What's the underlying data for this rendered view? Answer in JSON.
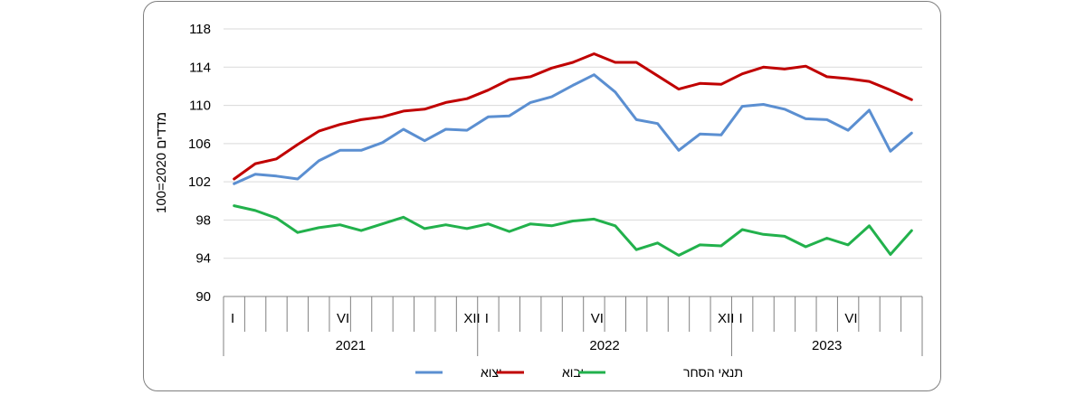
{
  "chart_data": {
    "type": "line",
    "ylabel": "מדדים 2020=100",
    "ylim": [
      90,
      118
    ],
    "yticks": [
      90,
      94,
      98,
      102,
      106,
      110,
      114,
      118
    ],
    "grid": true,
    "legend_position": "bottom",
    "months_per_year": 12,
    "month_labels": [
      {
        "index": 0,
        "label": "I"
      },
      {
        "index": 5,
        "label": "VI"
      },
      {
        "index": 11,
        "label": "XII"
      },
      {
        "index": 12,
        "label": "I"
      },
      {
        "index": 17,
        "label": "VI"
      },
      {
        "index": 23,
        "label": "XII"
      },
      {
        "index": 24,
        "label": "I"
      },
      {
        "index": 29,
        "label": "VI"
      }
    ],
    "years": [
      {
        "label": "2021",
        "months": 12
      },
      {
        "label": "2022",
        "months": 12
      },
      {
        "label": "2023",
        "months": 9
      }
    ],
    "series": [
      {
        "name": "יצוא",
        "color": "#5b8fd1",
        "values": [
          101.8,
          102.8,
          102.6,
          102.3,
          104.2,
          105.3,
          105.3,
          106.1,
          107.5,
          106.3,
          107.5,
          107.4,
          108.8,
          108.9,
          110.3,
          110.9,
          112.1,
          113.2,
          111.4,
          108.5,
          108.1,
          105.3,
          107.0,
          106.9,
          109.9,
          110.1,
          109.6,
          108.6,
          108.5,
          107.4,
          109.5,
          105.2,
          107.1
        ]
      },
      {
        "name": "יבוא",
        "color": "#c00000",
        "values": [
          102.3,
          103.9,
          104.4,
          105.9,
          107.3,
          108.0,
          108.5,
          108.8,
          109.4,
          109.6,
          110.3,
          110.7,
          111.6,
          112.7,
          113.0,
          113.9,
          114.5,
          115.4,
          114.5,
          114.5,
          113.1,
          111.7,
          112.3,
          112.2,
          113.3,
          114.0,
          113.8,
          114.1,
          113.0,
          112.8,
          112.5,
          111.6,
          110.6
        ]
      },
      {
        "name": "תנאי הסחר",
        "color": "#22b14c",
        "values": [
          99.5,
          99.0,
          98.2,
          96.7,
          97.2,
          97.5,
          96.9,
          97.6,
          98.3,
          97.1,
          97.5,
          97.1,
          97.6,
          96.8,
          97.6,
          97.4,
          97.9,
          98.1,
          97.4,
          94.9,
          95.6,
          94.3,
          95.4,
          95.3,
          97.0,
          96.5,
          96.3,
          95.2,
          96.1,
          95.4,
          97.4,
          94.4,
          96.9
        ]
      }
    ]
  }
}
